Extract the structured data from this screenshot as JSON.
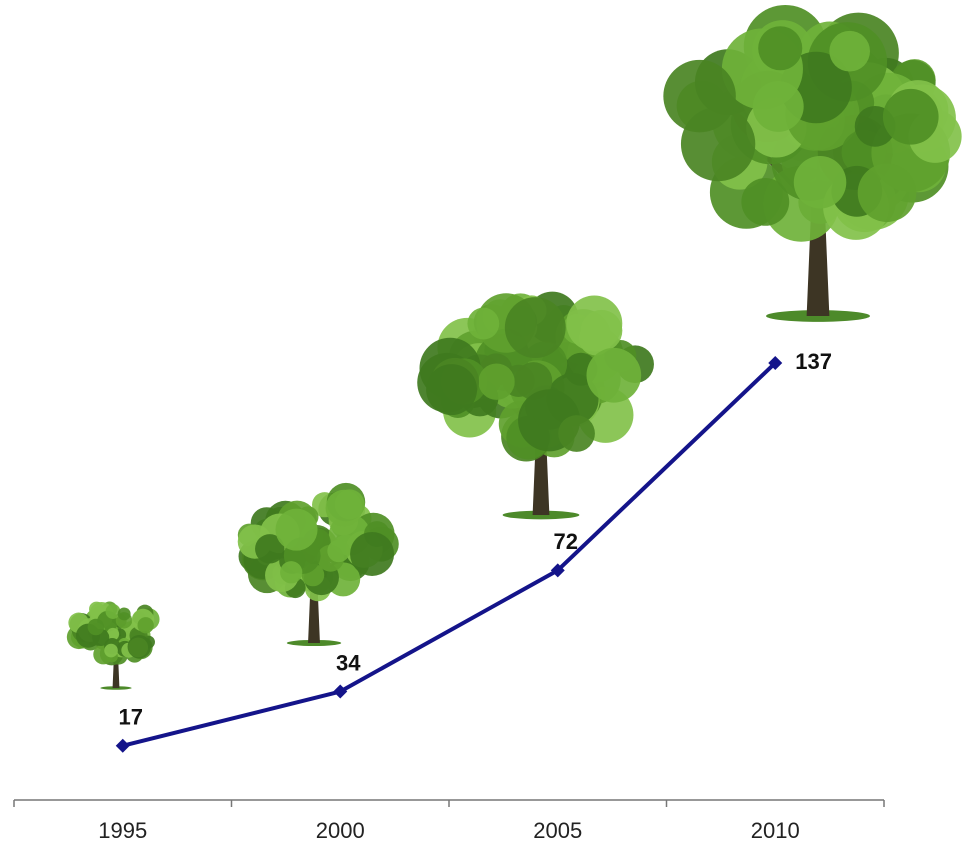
{
  "chart_data": {
    "type": "line",
    "categories": [
      "1995",
      "2000",
      "2005",
      "2010"
    ],
    "values": [
      17,
      34,
      72,
      137
    ],
    "color": "#14148a"
  }
}
